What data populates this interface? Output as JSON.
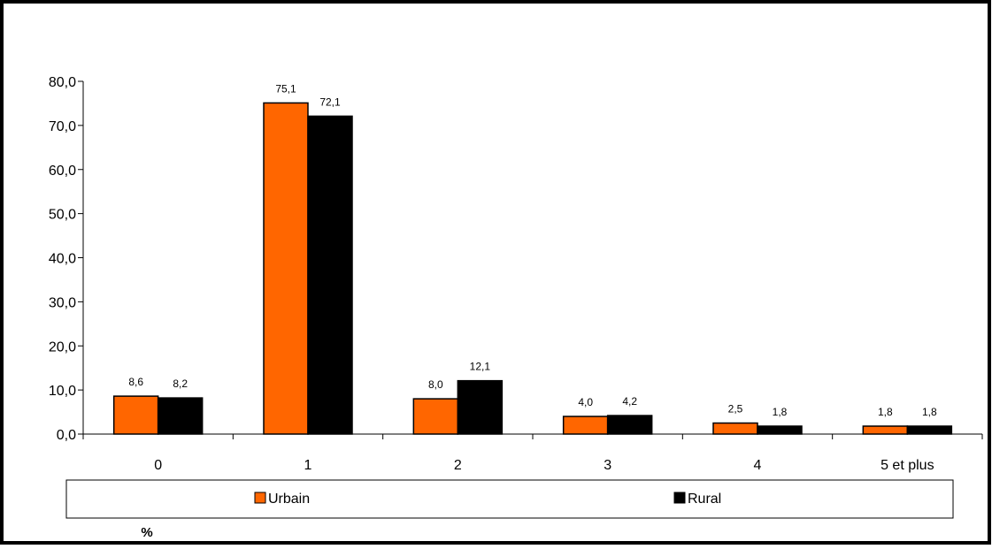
{
  "chart_data": {
    "type": "bar",
    "categories": [
      "0",
      "1",
      "2",
      "3",
      "4",
      "5 et plus"
    ],
    "series": [
      {
        "name": "Urbain",
        "values": [
          8.6,
          75.1,
          8.0,
          4.0,
          2.5,
          1.8
        ],
        "labels": [
          "8,6",
          "75,1",
          "8,0",
          "4,0",
          "2,5",
          "1,8"
        ]
      },
      {
        "name": "Rural",
        "values": [
          8.2,
          72.1,
          12.1,
          4.2,
          1.8,
          1.8
        ],
        "labels": [
          "8,2",
          "72,1",
          "12,1",
          "4,2",
          "1,8",
          "1,8"
        ]
      }
    ],
    "ylim": [
      0,
      80
    ],
    "yticks": [
      "0,0",
      "10,0",
      "20,0",
      "30,0",
      "40,0",
      "50,0",
      "60,0",
      "70,0",
      "80,0"
    ],
    "unit_label": "%",
    "grid": false,
    "legend_position": "bottom",
    "colors": {
      "Urbain": "#ff6600",
      "Rural": "#000000"
    }
  }
}
